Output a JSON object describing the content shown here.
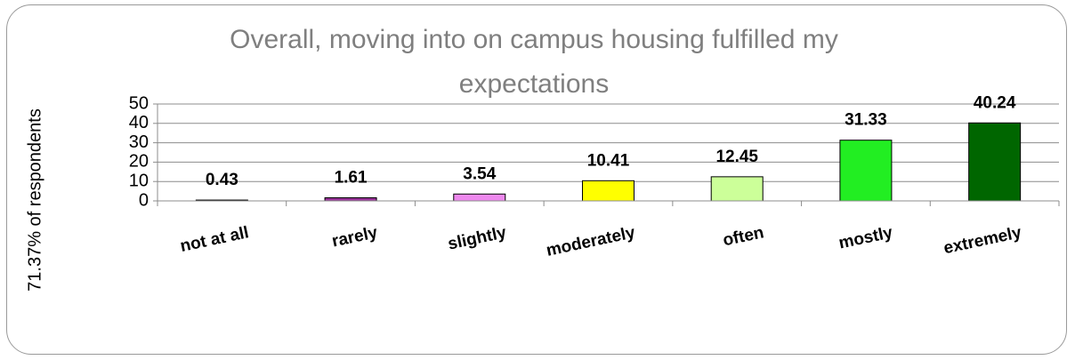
{
  "chart_data": {
    "type": "bar",
    "title": "Overall, moving into on campus housing fulfilled my expectations",
    "y_label": "71.37% of respondents",
    "categories": [
      "not at all",
      "rarely",
      "slightly",
      "moderately",
      "often",
      "mostly",
      "extremely"
    ],
    "values": [
      0.43,
      1.61,
      3.54,
      10.41,
      12.45,
      31.33,
      40.24
    ],
    "colors": [
      "#1a1a66",
      "#993399",
      "#ee88ee",
      "#ffff00",
      "#ccff99",
      "#22ee22",
      "#006600"
    ],
    "ylim": [
      0,
      50
    ],
    "yticks": [
      0,
      10,
      20,
      30,
      40,
      50
    ],
    "grid": true
  }
}
